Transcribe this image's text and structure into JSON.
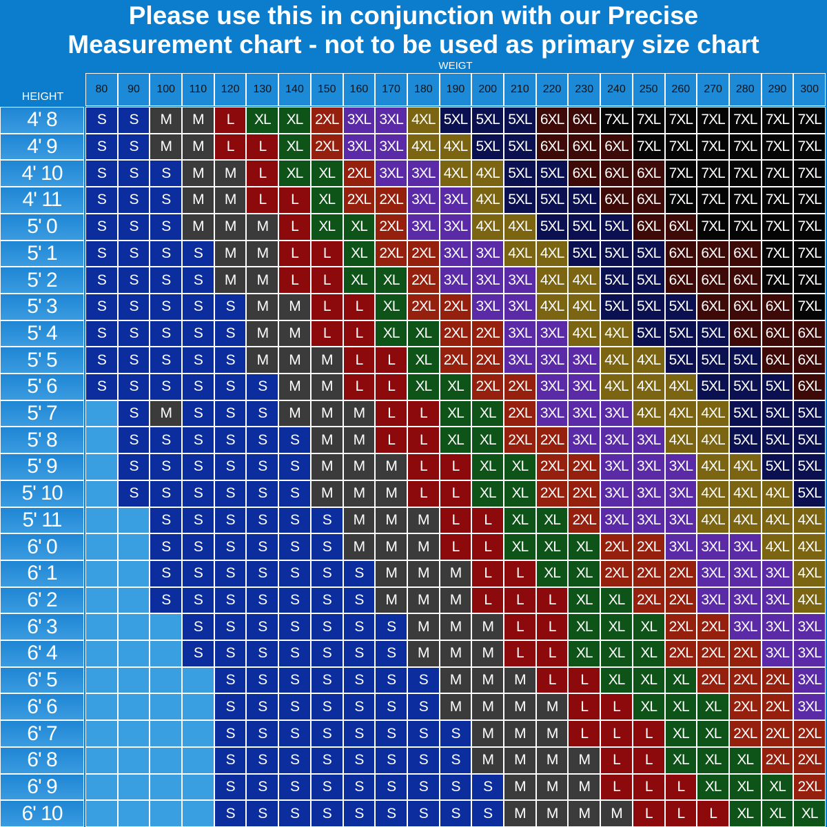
{
  "title_lines": [
    "Please use this in conjunction with our Precise",
    "Measurement chart - not to be used as primary size chart"
  ],
  "weight_label": "WEIGT",
  "height_label": "HEIGHT",
  "weights": [
    80,
    90,
    100,
    110,
    120,
    130,
    140,
    150,
    160,
    170,
    180,
    190,
    200,
    210,
    220,
    230,
    240,
    250,
    260,
    270,
    280,
    290,
    300
  ],
  "cell_colors": {
    "S": "#0c2d9e",
    "M": "#3b3b3b",
    "L": "#8c0a0c",
    "XL": "#0e5418",
    "2XL": "#95200e",
    "3XL": "#5b2aa6",
    "4XL": "#7b6412",
    "5XL": "#0b1150",
    "6XL": "#3d0a08",
    "7XL": "#050505"
  },
  "rows": [
    {
      "height": "4' 8",
      "sizes": [
        "S",
        "S",
        "M",
        "M",
        "L",
        "XL",
        "XL",
        "2XL",
        "3XL",
        "3XL",
        "4XL",
        "5XL",
        "5XL",
        "5XL",
        "6XL",
        "6XL",
        "7XL",
        "7XL",
        "7XL",
        "7XL",
        "7XL",
        "7XL",
        "7XL"
      ]
    },
    {
      "height": "4' 9",
      "sizes": [
        "S",
        "S",
        "M",
        "M",
        "L",
        "L",
        "XL",
        "2XL",
        "3XL",
        "3XL",
        "4XL",
        "4XL",
        "5XL",
        "5XL",
        "6XL",
        "6XL",
        "6XL",
        "7XL",
        "7XL",
        "7XL",
        "7XL",
        "7XL",
        "7XL"
      ]
    },
    {
      "height": "4' 10",
      "sizes": [
        "S",
        "S",
        "S",
        "M",
        "M",
        "L",
        "XL",
        "XL",
        "2XL",
        "3XL",
        "3XL",
        "4XL",
        "4XL",
        "5XL",
        "5XL",
        "6XL",
        "6XL",
        "6XL",
        "7XL",
        "7XL",
        "7XL",
        "7XL",
        "7XL"
      ]
    },
    {
      "height": "4' 11",
      "sizes": [
        "S",
        "S",
        "S",
        "M",
        "M",
        "L",
        "L",
        "XL",
        "2XL",
        "2XL",
        "3XL",
        "3XL",
        "4XL",
        "5XL",
        "5XL",
        "5XL",
        "6XL",
        "6XL",
        "7XL",
        "7XL",
        "7XL",
        "7XL",
        "7XL"
      ]
    },
    {
      "height": "5' 0",
      "sizes": [
        "S",
        "S",
        "S",
        "M",
        "M",
        "M",
        "L",
        "XL",
        "XL",
        "2XL",
        "3XL",
        "3XL",
        "4XL",
        "4XL",
        "5XL",
        "5XL",
        "5XL",
        "6XL",
        "6XL",
        "7XL",
        "7XL",
        "7XL",
        "7XL"
      ]
    },
    {
      "height": "5' 1",
      "sizes": [
        "S",
        "S",
        "S",
        "S",
        "M",
        "M",
        "L",
        "L",
        "XL",
        "2XL",
        "2XL",
        "3XL",
        "3XL",
        "4XL",
        "4XL",
        "5XL",
        "5XL",
        "5XL",
        "6XL",
        "6XL",
        "6XL",
        "7XL",
        "7XL"
      ]
    },
    {
      "height": "5' 2",
      "sizes": [
        "S",
        "S",
        "S",
        "S",
        "M",
        "M",
        "L",
        "L",
        "XL",
        "XL",
        "2XL",
        "3XL",
        "3XL",
        "3XL",
        "4XL",
        "4XL",
        "5XL",
        "5XL",
        "6XL",
        "6XL",
        "6XL",
        "7XL",
        "7XL"
      ]
    },
    {
      "height": "5' 3",
      "sizes": [
        "S",
        "S",
        "S",
        "S",
        "S",
        "M",
        "M",
        "L",
        "L",
        "XL",
        "2XL",
        "2XL",
        "3XL",
        "3XL",
        "4XL",
        "4XL",
        "5XL",
        "5XL",
        "5XL",
        "6XL",
        "6XL",
        "6XL",
        "7XL"
      ]
    },
    {
      "height": "5' 4",
      "sizes": [
        "S",
        "S",
        "S",
        "S",
        "S",
        "M",
        "M",
        "L",
        "L",
        "XL",
        "XL",
        "2XL",
        "2XL",
        "3XL",
        "3XL",
        "4XL",
        "4XL",
        "5XL",
        "5XL",
        "5XL",
        "6XL",
        "6XL",
        "6XL"
      ]
    },
    {
      "height": "5' 5",
      "sizes": [
        "S",
        "S",
        "S",
        "S",
        "S",
        "M",
        "M",
        "M",
        "L",
        "L",
        "XL",
        "2XL",
        "2XL",
        "3XL",
        "3XL",
        "3XL",
        "4XL",
        "4XL",
        "5XL",
        "5XL",
        "5XL",
        "6XL",
        "6XL"
      ]
    },
    {
      "height": "5' 6",
      "sizes": [
        "S",
        "S",
        "S",
        "S",
        "S",
        "S",
        "M",
        "M",
        "L",
        "L",
        "XL",
        "XL",
        "2XL",
        "2XL",
        "3XL",
        "3XL",
        "4XL",
        "4XL",
        "4XL",
        "5XL",
        "5XL",
        "5XL",
        "6XL"
      ]
    },
    {
      "height": "5' 7",
      "sizes": [
        null,
        "S",
        "M",
        "S",
        "S",
        "S",
        "M",
        "M",
        "M",
        "L",
        "L",
        "XL",
        "XL",
        "2XL",
        "3XL",
        "3XL",
        "3XL",
        "4XL",
        "4XL",
        "4XL",
        "5XL",
        "5XL",
        "5XL"
      ]
    },
    {
      "height": "5' 8",
      "sizes": [
        null,
        "S",
        "S",
        "S",
        "S",
        "S",
        "S",
        "M",
        "M",
        "L",
        "L",
        "XL",
        "XL",
        "2XL",
        "2XL",
        "3XL",
        "3XL",
        "3XL",
        "4XL",
        "4XL",
        "5XL",
        "5XL",
        "5XL"
      ]
    },
    {
      "height": "5' 9",
      "sizes": [
        null,
        "S",
        "S",
        "S",
        "S",
        "S",
        "S",
        "M",
        "M",
        "M",
        "L",
        "L",
        "XL",
        "XL",
        "2XL",
        "2XL",
        "3XL",
        "3XL",
        "3XL",
        "4XL",
        "4XL",
        "5XL",
        "5XL"
      ]
    },
    {
      "height": "5' 10",
      "sizes": [
        null,
        "S",
        "S",
        "S",
        "S",
        "S",
        "S",
        "M",
        "M",
        "M",
        "L",
        "L",
        "XL",
        "XL",
        "2XL",
        "2XL",
        "3XL",
        "3XL",
        "3XL",
        "4XL",
        "4XL",
        "4XL",
        "5XL"
      ]
    },
    {
      "height": "5' 11",
      "sizes": [
        null,
        null,
        "S",
        "S",
        "S",
        "S",
        "S",
        "S",
        "M",
        "M",
        "M",
        "L",
        "L",
        "XL",
        "XL",
        "2XL",
        "3XL",
        "3XL",
        "3XL",
        "4XL",
        "4XL",
        "4XL",
        "4XL"
      ]
    },
    {
      "height": "6' 0",
      "sizes": [
        null,
        null,
        "S",
        "S",
        "S",
        "S",
        "S",
        "S",
        "M",
        "M",
        "M",
        "L",
        "L",
        "XL",
        "XL",
        "XL",
        "2XL",
        "2XL",
        "3XL",
        "3XL",
        "3XL",
        "4XL",
        "4XL"
      ]
    },
    {
      "height": "6' 1",
      "sizes": [
        null,
        null,
        "S",
        "S",
        "S",
        "S",
        "S",
        "S",
        "S",
        "M",
        "M",
        "M",
        "L",
        "L",
        "XL",
        "XL",
        "2XL",
        "2XL",
        "2XL",
        "3XL",
        "3XL",
        "3XL",
        "4XL"
      ]
    },
    {
      "height": "6' 2",
      "sizes": [
        null,
        null,
        "S",
        "S",
        "S",
        "S",
        "S",
        "S",
        "S",
        "M",
        "M",
        "M",
        "L",
        "L",
        "L",
        "XL",
        "XL",
        "2XL",
        "2XL",
        "3XL",
        "3XL",
        "3XL",
        "4XL"
      ]
    },
    {
      "height": "6' 3",
      "sizes": [
        null,
        null,
        null,
        "S",
        "S",
        "S",
        "S",
        "S",
        "S",
        "S",
        "M",
        "M",
        "M",
        "L",
        "L",
        "XL",
        "XL",
        "XL",
        "2XL",
        "2XL",
        "3XL",
        "3XL",
        "3XL"
      ]
    },
    {
      "height": "6' 4",
      "sizes": [
        null,
        null,
        null,
        "S",
        "S",
        "S",
        "S",
        "S",
        "S",
        "S",
        "M",
        "M",
        "M",
        "L",
        "L",
        "XL",
        "XL",
        "XL",
        "2XL",
        "2XL",
        "2XL",
        "3XL",
        "3XL"
      ]
    },
    {
      "height": "6' 5",
      "sizes": [
        null,
        null,
        null,
        null,
        "S",
        "S",
        "S",
        "S",
        "S",
        "S",
        "S",
        "M",
        "M",
        "M",
        "L",
        "L",
        "XL",
        "XL",
        "XL",
        "2XL",
        "2XL",
        "2XL",
        "3XL"
      ]
    },
    {
      "height": "6' 6",
      "sizes": [
        null,
        null,
        null,
        null,
        "S",
        "S",
        "S",
        "S",
        "S",
        "S",
        "S",
        "M",
        "M",
        "M",
        "M",
        "L",
        "L",
        "XL",
        "XL",
        "XL",
        "2XL",
        "2XL",
        "3XL"
      ]
    },
    {
      "height": "6' 7",
      "sizes": [
        null,
        null,
        null,
        null,
        "S",
        "S",
        "S",
        "S",
        "S",
        "S",
        "S",
        "S",
        "M",
        "M",
        "M",
        "L",
        "L",
        "L",
        "XL",
        "XL",
        "2XL",
        "2XL",
        "2XL"
      ]
    },
    {
      "height": "6' 8",
      "sizes": [
        null,
        null,
        null,
        null,
        "S",
        "S",
        "S",
        "S",
        "S",
        "S",
        "S",
        "S",
        "M",
        "M",
        "M",
        "M",
        "L",
        "L",
        "XL",
        "XL",
        "XL",
        "2XL",
        "2XL"
      ]
    },
    {
      "height": "6' 9",
      "sizes": [
        null,
        null,
        null,
        null,
        "S",
        "S",
        "S",
        "S",
        "S",
        "S",
        "S",
        "S",
        "S",
        "M",
        "M",
        "M",
        "L",
        "L",
        "L",
        "XL",
        "XL",
        "XL",
        "2XL"
      ]
    },
    {
      "height": "6' 10",
      "sizes": [
        null,
        null,
        null,
        null,
        "S",
        "S",
        "S",
        "S",
        "S",
        "S",
        "S",
        "S",
        "S",
        "M",
        "M",
        "M",
        "M",
        "L",
        "L",
        "L",
        "XL",
        "XL",
        "XL"
      ]
    }
  ]
}
